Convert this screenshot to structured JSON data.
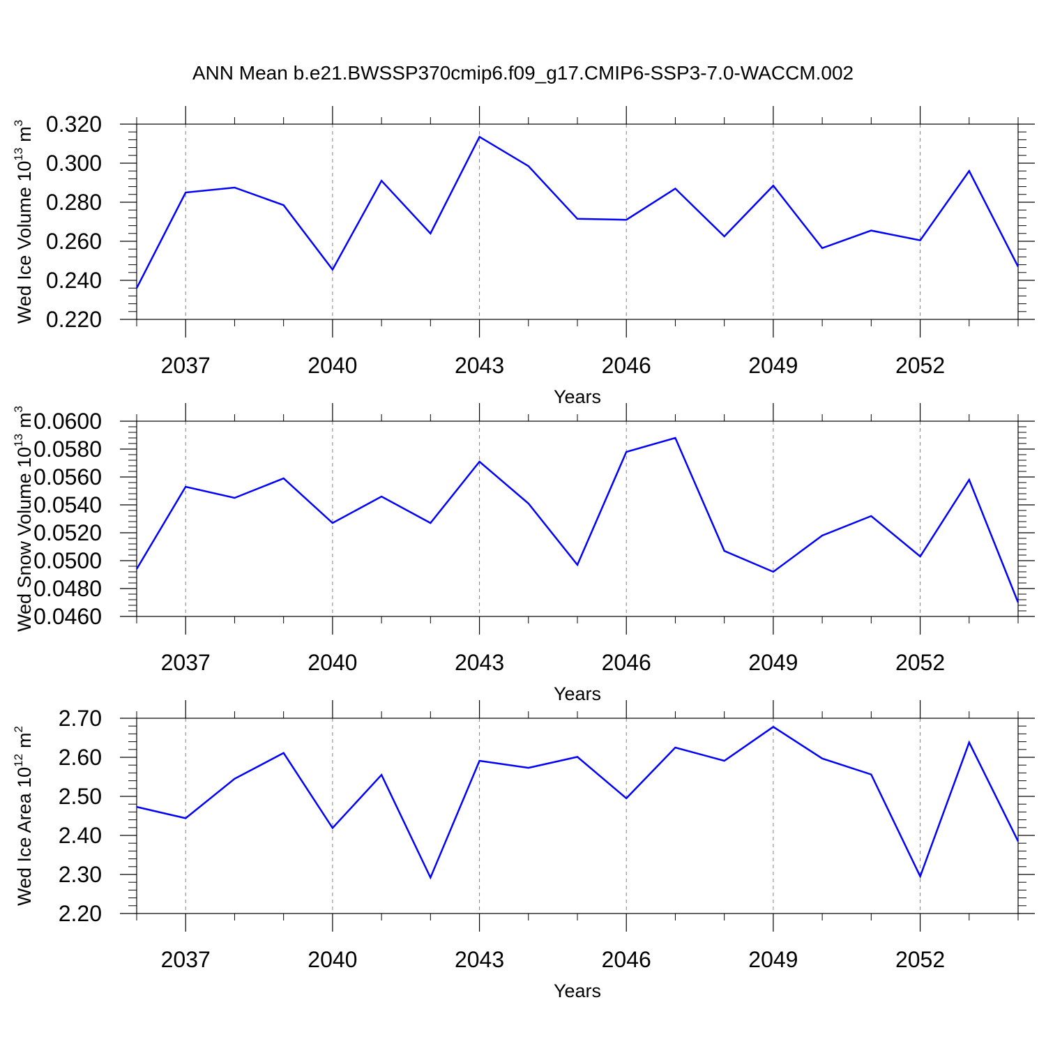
{
  "title": "ANN Mean b.e21.BWSSP370cmip6.f09_g17.CMIP6-SSP3-7.0-WACCM.002",
  "colors": {
    "line": "#0000ff",
    "axis": "#000000",
    "grid": "#808080"
  },
  "chart_data": [
    {
      "type": "line",
      "xlabel": "Years",
      "ylabel": "Wed Ice Volume 10",
      "ylabel_exp": "13",
      "ylabel_unit": "m",
      "ylabel_unit_exp": "3",
      "xlim": [
        2036,
        2054
      ],
      "ylim": [
        0.22,
        0.32
      ],
      "yticks": [
        "0.220",
        "0.240",
        "0.260",
        "0.280",
        "0.300",
        "0.320"
      ],
      "xticks": [
        "2037",
        "2040",
        "2043",
        "2046",
        "2049",
        "2052"
      ],
      "grid": "vertical dashed at labeled years",
      "series": [
        {
          "x": [
            2036,
            2037,
            2038,
            2039,
            2040,
            2041,
            2042,
            2043,
            2044,
            2045,
            2046,
            2047,
            2048,
            2049,
            2050,
            2051,
            2052,
            2053,
            2054
          ],
          "values": [
            0.236,
            0.285,
            0.2875,
            0.2785,
            0.2455,
            0.291,
            0.264,
            0.3135,
            0.2985,
            0.2715,
            0.271,
            0.287,
            0.2625,
            0.2885,
            0.2565,
            0.2655,
            0.2605,
            0.296,
            0.247
          ]
        }
      ]
    },
    {
      "type": "line",
      "xlabel": "Years",
      "ylabel": "Wed Snow Volume 10",
      "ylabel_exp": "13",
      "ylabel_unit": "m",
      "ylabel_unit_exp": "3",
      "xlim": [
        2036,
        2054
      ],
      "ylim": [
        0.046,
        0.06
      ],
      "yticks": [
        "0.0460",
        "0.0480",
        "0.0500",
        "0.0520",
        "0.0540",
        "0.0560",
        "0.0580",
        "0.0600"
      ],
      "xticks": [
        "2037",
        "2040",
        "2043",
        "2046",
        "2049",
        "2052"
      ],
      "grid": "vertical dashed at labeled years",
      "series": [
        {
          "x": [
            2036,
            2037,
            2038,
            2039,
            2040,
            2041,
            2042,
            2043,
            2044,
            2045,
            2046,
            2047,
            2048,
            2049,
            2050,
            2051,
            2052,
            2053,
            2054
          ],
          "values": [
            0.0494,
            0.0553,
            0.0545,
            0.0559,
            0.0527,
            0.0546,
            0.0527,
            0.0571,
            0.0541,
            0.0497,
            0.0578,
            0.0588,
            0.0507,
            0.0492,
            0.0518,
            0.0532,
            0.0503,
            0.0558,
            0.047
          ]
        }
      ]
    },
    {
      "type": "line",
      "xlabel": "Years",
      "ylabel": "Wed Ice Area 10",
      "ylabel_exp": "12",
      "ylabel_unit": "m",
      "ylabel_unit_exp": "2",
      "xlim": [
        2036,
        2054
      ],
      "ylim": [
        2.2,
        2.7
      ],
      "yticks": [
        "2.20",
        "2.30",
        "2.40",
        "2.50",
        "2.60",
        "2.70"
      ],
      "xticks": [
        "2037",
        "2040",
        "2043",
        "2046",
        "2049",
        "2052"
      ],
      "grid": "vertical dashed at labeled years",
      "series": [
        {
          "x": [
            2036,
            2037,
            2038,
            2039,
            2040,
            2041,
            2042,
            2043,
            2044,
            2045,
            2046,
            2047,
            2048,
            2049,
            2050,
            2051,
            2052,
            2053,
            2054
          ],
          "values": [
            2.473,
            2.444,
            2.545,
            2.611,
            2.419,
            2.555,
            2.292,
            2.591,
            2.573,
            2.601,
            2.495,
            2.625,
            2.591,
            2.678,
            2.597,
            2.556,
            2.295,
            2.638,
            2.385
          ]
        }
      ]
    }
  ]
}
